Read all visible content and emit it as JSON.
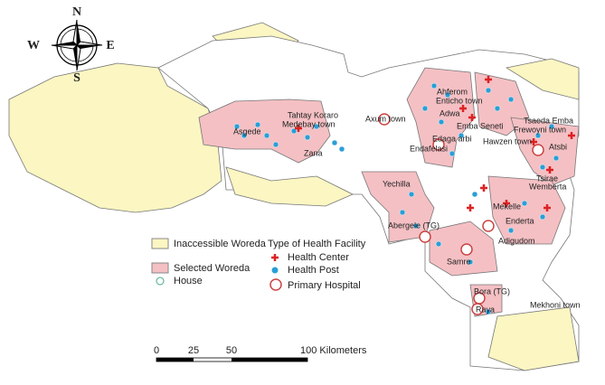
{
  "compass": {
    "north": "N",
    "south": "S",
    "east": "E",
    "west": "W"
  },
  "legend": {
    "areas": [
      "Inaccessible Woreda",
      "Selected Woreda",
      "House"
    ],
    "facility_title": "Type of Health Facility",
    "facilities": [
      "Health Center",
      "Health Post",
      "Primary Hospital"
    ]
  },
  "places": [
    "Asgede",
    "Tahtay Koraro",
    "Medebay town",
    "Zana",
    "Axum town",
    "Ahferom",
    "Enticho town",
    "Adwa",
    "Emba Seneti",
    "Endafelasi",
    "Edaga arbi",
    "Tsaeda Emba",
    "Frewoyni town",
    "Hawzen town",
    "Atsbi",
    "Wemberta",
    "Tsirae",
    "Yechilla",
    "Mekelle",
    "Enderta",
    "Adigudom",
    "Abergele (TG)",
    "Samre",
    "Bora (TG)",
    "Raya",
    "Mekhoni town"
  ],
  "scale": {
    "labels": [
      "0",
      "25",
      "50",
      "100 Kilometers"
    ]
  }
}
